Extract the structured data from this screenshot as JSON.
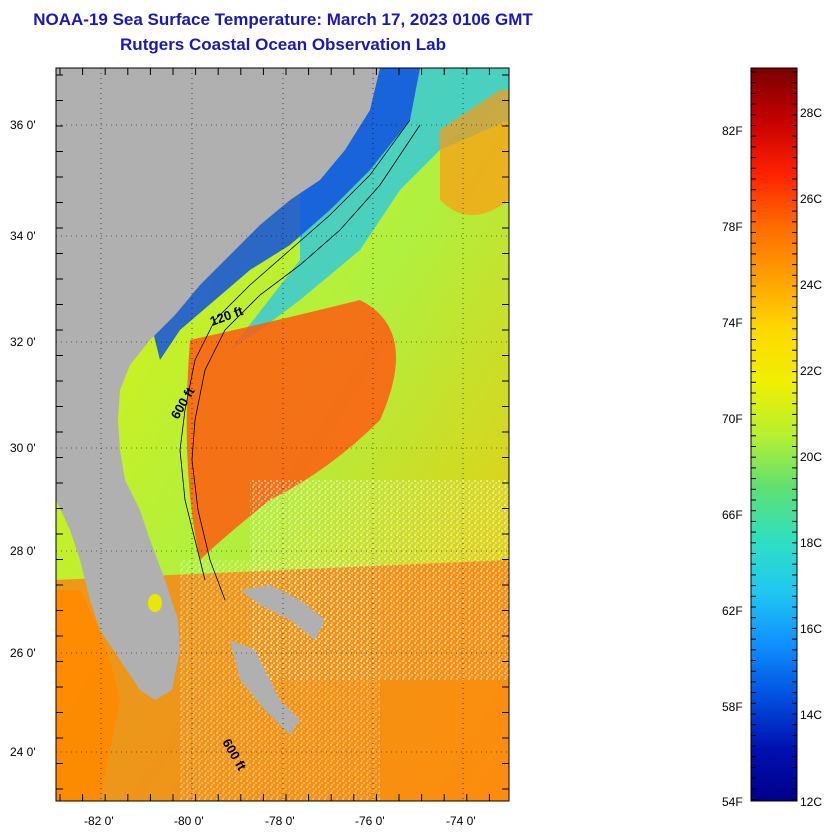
{
  "title": {
    "line1": "NOAA-19 Sea Surface Temperature:  March 17, 2023 0106 GMT",
    "line2": "Rutgers Coastal Ocean Observation Lab"
  },
  "map": {
    "lat_labels": [
      "36 0'",
      "34 0'",
      "32 0'",
      "30 0'",
      "28 0'",
      "26 0'",
      "24 0'"
    ],
    "lon_labels": [
      "-82 0'",
      "-80 0'",
      "-78 0'",
      "-76 0'",
      "-74 0'"
    ],
    "isobath_labels": [
      "120 ft",
      "600 ft",
      "600 ft"
    ],
    "land_color": "#b0b0b0"
  },
  "colorbar": {
    "fahrenheit_labels": [
      "82F",
      "78F",
      "74F",
      "70F",
      "66F",
      "62F",
      "58F",
      "54F"
    ],
    "celsius_labels": [
      "28C",
      "26C",
      "24C",
      "22C",
      "20C",
      "18C",
      "16C",
      "14C",
      "12C"
    ],
    "colors": [
      "#7a0000",
      "#c40000",
      "#ff2000",
      "#ff6a00",
      "#ffa000",
      "#ffd800",
      "#f0f000",
      "#b8f030",
      "#60e070",
      "#30e0c0",
      "#20c8f0",
      "#1090ff",
      "#0050e0",
      "#0010b0",
      "#00008a"
    ]
  }
}
